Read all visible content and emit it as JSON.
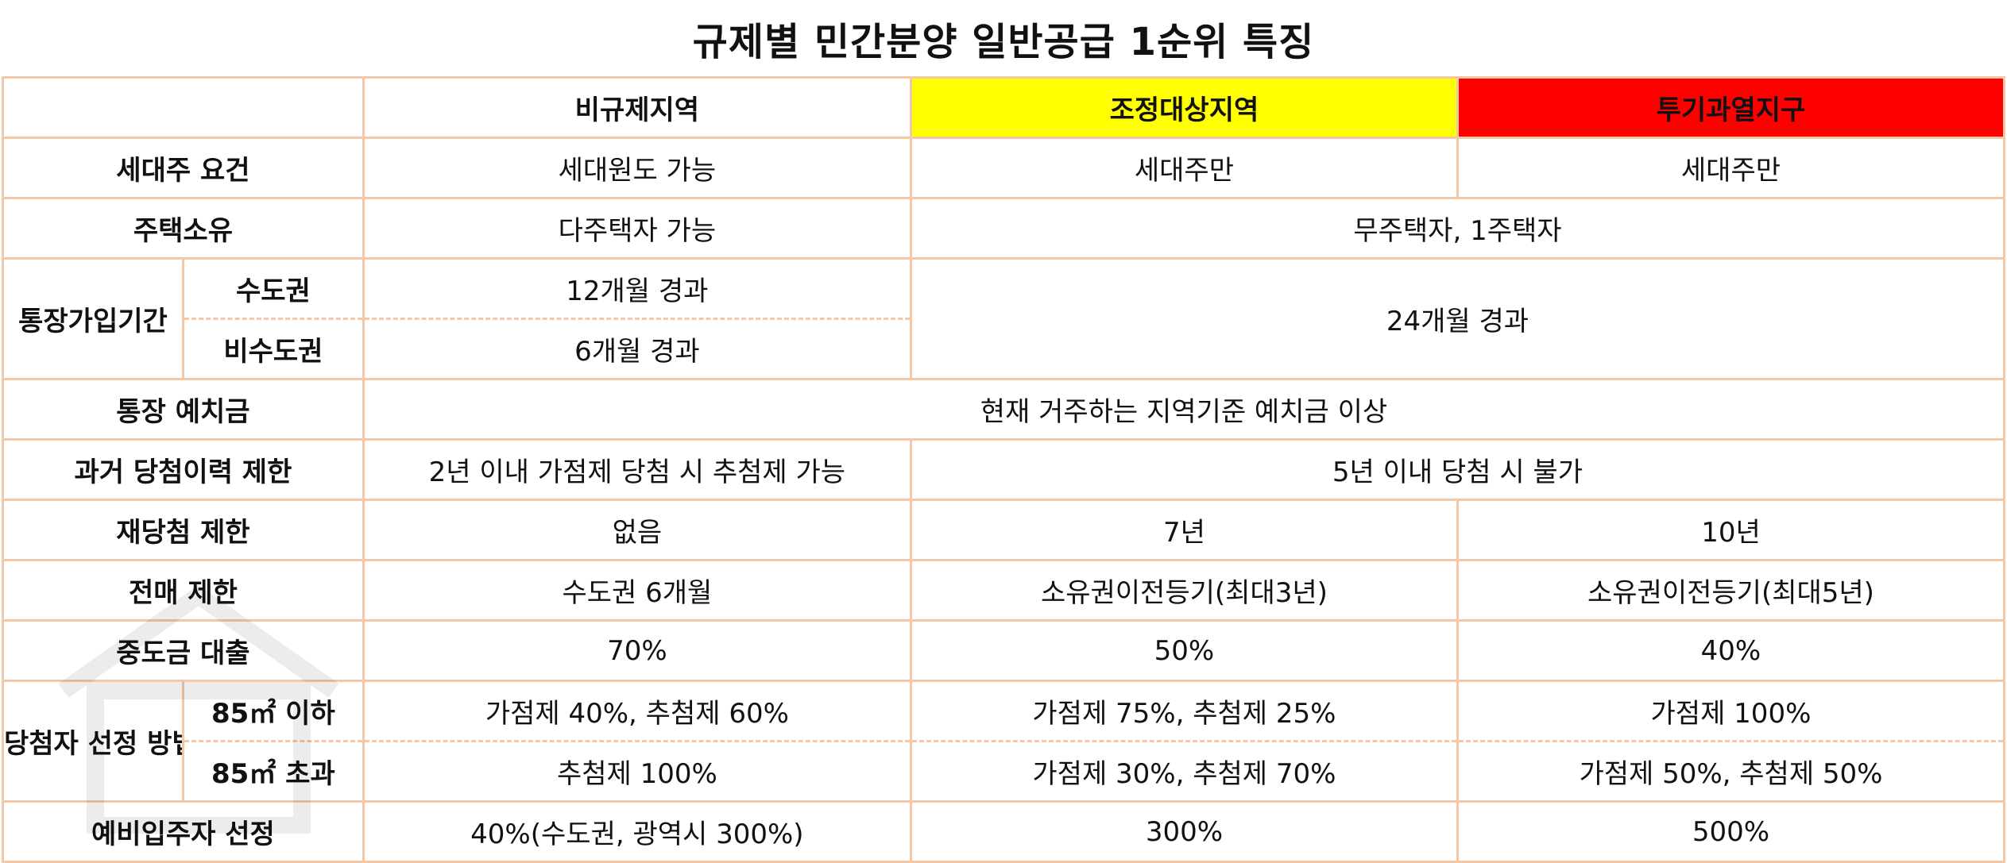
{
  "title": "규제별 민간분양 일반공급 1순위 특징",
  "columns": {
    "non_regulated": "비규제지역",
    "adjustment": "조정대상지역",
    "speculation": "투기과열지구"
  },
  "colors": {
    "border": "#f4c7a6",
    "adjustment_bg": "#ffff00",
    "speculation_bg": "#ff0000"
  },
  "rows": {
    "household_head": {
      "label": "세대주 요건",
      "non_regulated": "세대원도 가능",
      "adjustment": "세대주만",
      "speculation": "세대주만"
    },
    "house_ownership": {
      "label": "주택소유",
      "non_regulated": "다주택자 가능",
      "regulated": "무주택자, 1주택자"
    },
    "subscription_period": {
      "label": "통장가입기간",
      "capital_label": "수도권",
      "capital_non_regulated": "12개월 경과",
      "noncapital_label": "비수도권",
      "noncapital_non_regulated": "6개월 경과",
      "regulated": "24개월 경과"
    },
    "deposit": {
      "label": "통장 예치금",
      "value": "현재 거주하는 지역기준 예치금 이상"
    },
    "past_win": {
      "label": "과거 당첨이력 제한",
      "non_regulated": "2년 이내 가점제 당첨 시 추첨제 가능",
      "regulated": "5년 이내 당첨 시 불가"
    },
    "rewin": {
      "label": "재당첨 제한",
      "non_regulated": "없음",
      "adjustment": "7년",
      "speculation": "10년"
    },
    "resale": {
      "label": "전매 제한",
      "non_regulated": "수도권 6개월",
      "adjustment": "소유권이전등기(최대3년)",
      "speculation": "소유권이전등기(최대5년)"
    },
    "interim_loan": {
      "label": "중도금 대출",
      "non_regulated": "70%",
      "adjustment": "50%",
      "speculation": "40%"
    },
    "winner_selection": {
      "label": "당첨자 선정 방법",
      "under85_label": "85㎡ 이하",
      "under85_non_regulated": "가점제 40%, 추첨제 60%",
      "under85_adjustment": "가점제 75%, 추첨제 25%",
      "under85_speculation": "가점제 100%",
      "over85_label": "85㎡ 초과",
      "over85_non_regulated": "추첨제 100%",
      "over85_adjustment": "가점제 30%, 추첨제 70%",
      "over85_speculation": "가점제 50%, 추첨제 50%"
    },
    "reserve": {
      "label": "예비입주자 선정",
      "non_regulated": "40%(수도권, 광역시 300%)",
      "adjustment": "300%",
      "speculation": "500%"
    }
  }
}
